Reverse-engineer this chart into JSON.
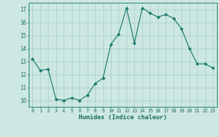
{
  "x": [
    0,
    1,
    2,
    3,
    4,
    5,
    6,
    7,
    8,
    9,
    10,
    11,
    12,
    13,
    14,
    15,
    16,
    17,
    18,
    19,
    20,
    21,
    22,
    23
  ],
  "y": [
    13.2,
    12.3,
    12.4,
    10.1,
    10.0,
    10.2,
    10.0,
    10.4,
    11.3,
    11.7,
    14.3,
    15.1,
    17.1,
    14.4,
    17.1,
    16.7,
    16.4,
    16.6,
    16.3,
    15.5,
    14.0,
    12.8,
    12.8,
    12.5
  ],
  "xlim": [
    -0.5,
    23.5
  ],
  "ylim": [
    9.5,
    17.5
  ],
  "yticks": [
    10,
    11,
    12,
    13,
    14,
    15,
    16,
    17
  ],
  "xticks": [
    0,
    1,
    2,
    3,
    4,
    5,
    6,
    7,
    8,
    9,
    10,
    11,
    12,
    13,
    14,
    15,
    16,
    17,
    18,
    19,
    20,
    21,
    22,
    23
  ],
  "xlabel": "Humidex (Indice chaleur)",
  "line_color": "#1a7a6e",
  "marker": "D",
  "marker_size": 2.2,
  "bg_color": "#cde8e2",
  "grid_color": "#aacfc8",
  "label_color": "#1a6b5e",
  "tick_color": "#1a6b5e",
  "tick_fontsize": 5.0,
  "xlabel_fontsize": 6.5,
  "linewidth": 0.9
}
